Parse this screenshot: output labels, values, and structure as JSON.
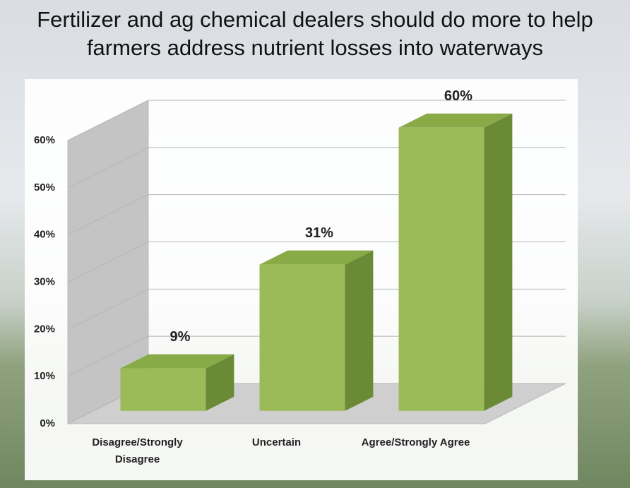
{
  "chart_data": {
    "type": "bar3d",
    "title": "Fertilizer and ag chemical dealers should do more to help farmers address nutrient losses into waterways",
    "categories": [
      "Disagree/Strongly Disagree",
      "Uncertain",
      "Agree/Strongly Agree"
    ],
    "values": [
      9,
      31,
      60
    ],
    "value_labels": [
      "9%",
      "31%",
      "60%"
    ],
    "color": "#9bbb59",
    "ylim": [
      0,
      60
    ],
    "yticks": [
      {
        "value": 0,
        "label": "0%"
      },
      {
        "value": 10,
        "label": "10%"
      },
      {
        "value": 20,
        "label": "20%"
      },
      {
        "value": 30,
        "label": "30%"
      },
      {
        "value": 40,
        "label": "40%"
      },
      {
        "value": 50,
        "label": "50%"
      },
      {
        "value": 60,
        "label": "60%"
      }
    ],
    "grid": true
  }
}
